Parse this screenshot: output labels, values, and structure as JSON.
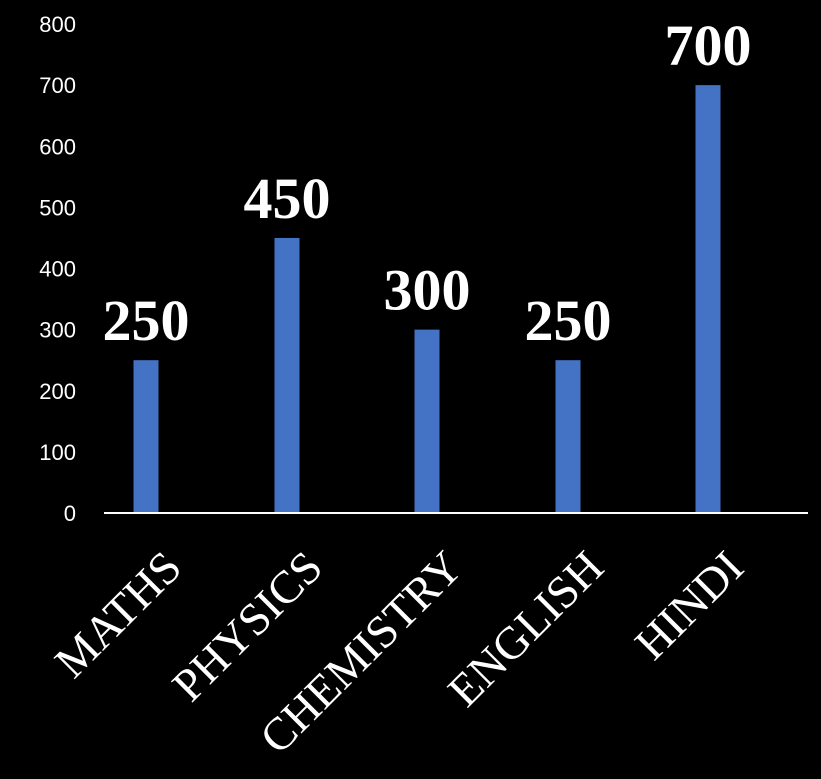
{
  "chart_data": {
    "type": "bar",
    "categories": [
      "MATHS",
      "PHYSICS",
      "CHEMISTRY",
      "ENGLISH",
      "HINDI"
    ],
    "values": [
      250,
      450,
      300,
      250,
      700
    ],
    "data_labels": [
      "250",
      "450",
      "300",
      "250",
      "700"
    ],
    "ylim": [
      0,
      800
    ],
    "yticks": [
      "0",
      "100",
      "200",
      "300",
      "400",
      "500",
      "600",
      "700",
      "800"
    ],
    "grid": false,
    "legend": "none",
    "colors": {
      "bar": "#4472C4",
      "background": "#000000",
      "axis": "#ffffff",
      "text": "#ffffff"
    }
  }
}
